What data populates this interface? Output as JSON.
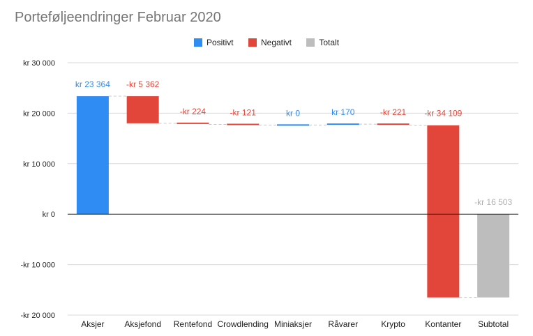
{
  "chart_data": {
    "type": "waterfall",
    "title": "Porteføljeendringer Februar 2020",
    "legend": {
      "placement": "top-center",
      "items": [
        {
          "name": "Positivt",
          "color": "#2f8cf2"
        },
        {
          "name": "Negativt",
          "color": "#e2463a"
        },
        {
          "name": "Totalt",
          "color": "#bdbdbd"
        }
      ]
    },
    "y_axis": {
      "ylim": [
        -20000,
        30000
      ],
      "ticks": [
        30000,
        20000,
        10000,
        0,
        -10000,
        -20000
      ],
      "tick_labels": [
        "kr  30 000",
        "kr  20 000",
        "kr  10 000",
        "kr   0",
        "-kr  10 000",
        "-kr  20 000"
      ]
    },
    "grid": true,
    "categories": [
      "Aksjer",
      "Aksjefond",
      "Rentefond",
      "Crowdlending",
      "Miniaksjer",
      "Råvarer",
      "Krypto",
      "Kontanter",
      "Subtotal"
    ],
    "values": [
      23364,
      -5362,
      -224,
      -121,
      0,
      170,
      -221,
      -34109,
      -16503
    ],
    "kinds": [
      "positive",
      "negative",
      "negative",
      "negative",
      "positive",
      "positive",
      "negative",
      "negative",
      "total"
    ],
    "data_labels": [
      "kr  23 364",
      "-kr  5 362",
      "-kr  224",
      "-kr  121",
      "kr  0",
      "kr  170",
      "-kr  221",
      "-kr 34 109",
      "-kr  16 503"
    ],
    "colors": {
      "positive": "#2f8cf2",
      "negative": "#e2463a",
      "total": "#bdbdbd",
      "total_label": "#b0b0b0",
      "grid": "#d9d9d9",
      "zero_line": "#222222",
      "tick_text": "#222222"
    }
  }
}
